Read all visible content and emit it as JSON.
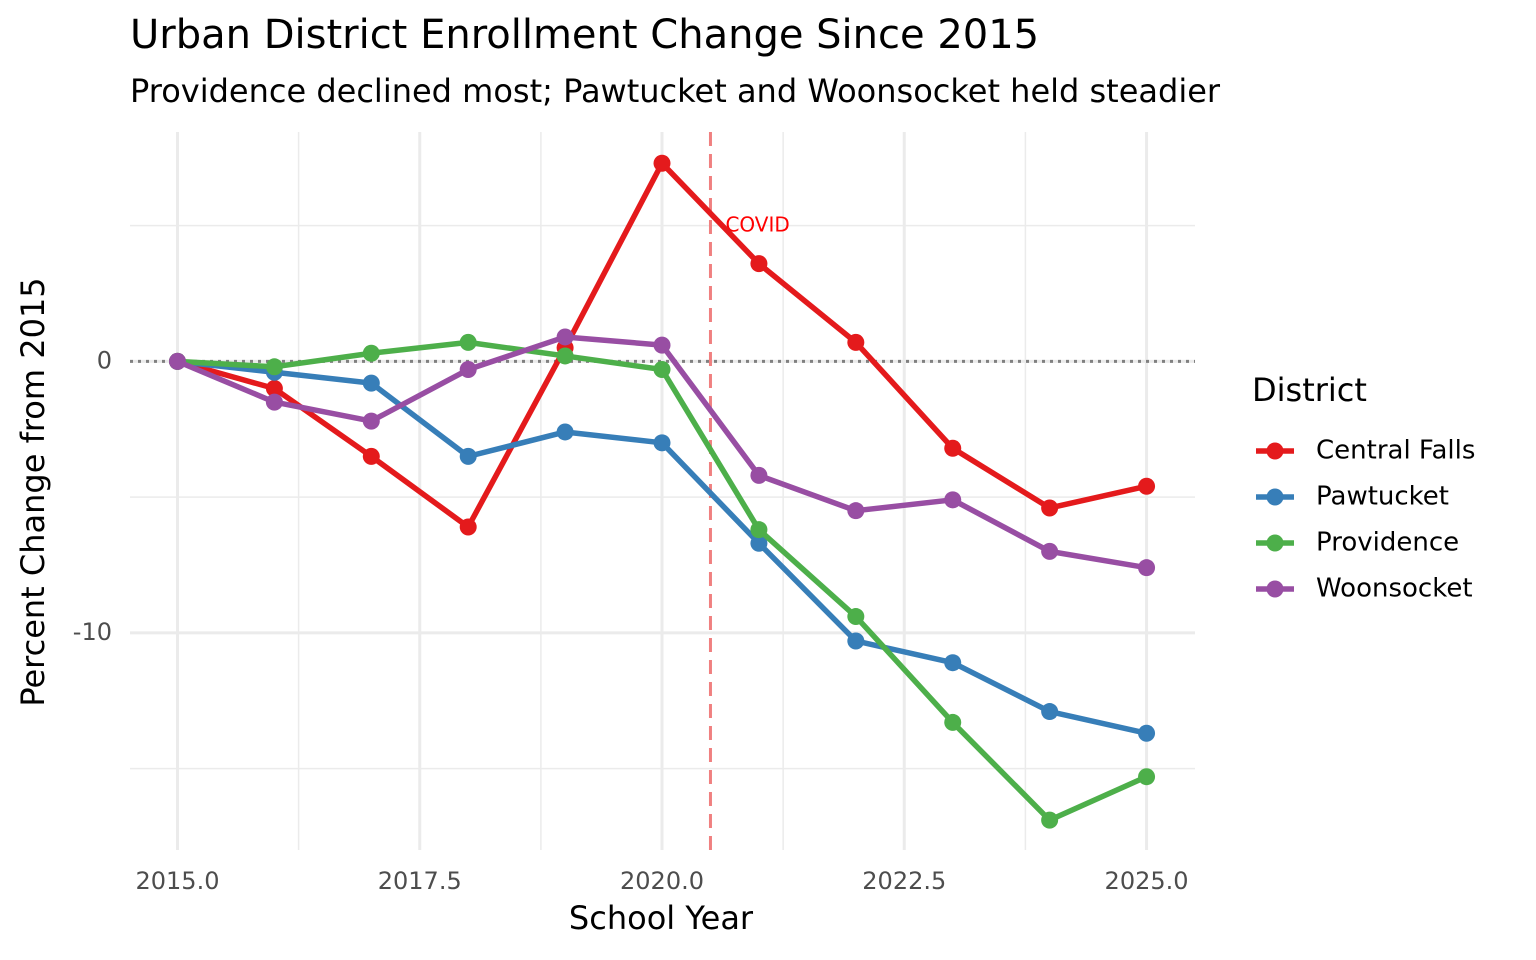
{
  "chart_data": {
    "type": "line",
    "title": "Urban District Enrollment Change Since 2015",
    "subtitle": "Providence declined most; Pawtucket and Woonsocket held steadier",
    "x_label": "School Year",
    "y_label": "Percent Change from 2015",
    "legend_title": "District",
    "legend_position": "right",
    "grid": true,
    "x": [
      2015,
      2016,
      2017,
      2018,
      2019,
      2020,
      2021,
      2022,
      2023,
      2024,
      2025
    ],
    "series": [
      {
        "name": "Central Falls",
        "color": "#e41a1c",
        "values": [
          0,
          -1.0,
          -3.5,
          -6.1,
          0.5,
          7.3,
          3.6,
          0.7,
          -3.2,
          -5.4,
          -4.6
        ]
      },
      {
        "name": "Pawtucket",
        "color": "#377eb8",
        "values": [
          0,
          -0.4,
          -0.8,
          -3.5,
          -2.6,
          -3.0,
          -6.7,
          -10.3,
          -11.1,
          -12.9,
          -13.7
        ]
      },
      {
        "name": "Providence",
        "color": "#4daf4a",
        "values": [
          0,
          -0.2,
          0.3,
          0.7,
          0.2,
          -0.3,
          -6.2,
          -9.4,
          -13.3,
          -16.9,
          -15.3
        ]
      },
      {
        "name": "Woonsocket",
        "color": "#984ea3",
        "values": [
          0,
          -1.5,
          -2.2,
          -0.3,
          0.9,
          0.6,
          -4.2,
          -5.5,
          -5.1,
          -7.0,
          -7.6
        ]
      }
    ],
    "xlim": [
      2014.51,
      2025.5
    ],
    "ylim": [
      -18,
      8.45
    ],
    "xticks": [
      {
        "value": 2015,
        "label": "2015.0"
      },
      {
        "value": 2017.5,
        "label": "2017.5"
      },
      {
        "value": 2020,
        "label": "2020.0"
      },
      {
        "value": 2022.5,
        "label": "2022.5"
      },
      {
        "value": 2025,
        "label": "2025.0"
      }
    ],
    "yticks": [
      -10,
      0
    ],
    "x_minor_grid": [
      2016.25,
      2018.75,
      2021.25,
      2023.75
    ],
    "y_minor_grid": [
      -15,
      -5,
      5
    ],
    "hline": {
      "value": 0,
      "color": "#808080"
    },
    "vline": {
      "value": 2020.5,
      "color": "#f08080",
      "label": "COVID",
      "label_color": "#ff0000"
    }
  }
}
